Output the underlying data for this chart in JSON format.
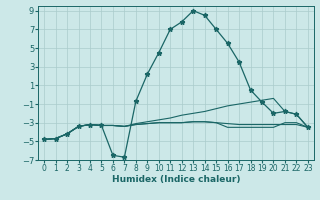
{
  "xlabel": "Humidex (Indice chaleur)",
  "bg_color": "#cce8e8",
  "grid_color": "#aacccc",
  "line_color": "#1a6666",
  "xlim": [
    -0.5,
    23.5
  ],
  "ylim": [
    -7,
    9.5
  ],
  "xticks": [
    0,
    1,
    2,
    3,
    4,
    5,
    6,
    7,
    8,
    9,
    10,
    11,
    12,
    13,
    14,
    15,
    16,
    17,
    18,
    19,
    20,
    21,
    22,
    23
  ],
  "yticks": [
    -7,
    -5,
    -3,
    -1,
    1,
    3,
    5,
    7,
    9
  ],
  "series1_x": [
    0,
    1,
    2,
    3,
    4,
    5,
    6,
    7,
    8,
    9,
    10,
    11,
    12,
    13,
    14,
    15,
    16,
    17,
    18,
    19,
    20,
    21,
    22,
    23
  ],
  "series1_y": [
    -4.8,
    -4.7,
    -4.2,
    -3.4,
    -3.2,
    -3.3,
    -6.5,
    -6.7,
    -0.7,
    2.2,
    4.5,
    7.0,
    7.8,
    9.0,
    8.5,
    7.0,
    5.5,
    3.5,
    0.5,
    -0.8,
    -2.0,
    -1.8,
    -2.1,
    -3.5
  ],
  "series2_x": [
    0,
    1,
    2,
    3,
    4,
    5,
    6,
    7,
    8,
    9,
    10,
    11,
    12,
    13,
    14,
    15,
    16,
    17,
    18,
    19,
    20,
    21,
    22,
    23
  ],
  "series2_y": [
    -4.8,
    -4.7,
    -4.2,
    -3.4,
    -3.2,
    -3.3,
    -3.3,
    -3.4,
    -3.1,
    -2.9,
    -2.7,
    -2.5,
    -2.2,
    -2.0,
    -1.8,
    -1.5,
    -1.2,
    -1.0,
    -0.8,
    -0.6,
    -0.4,
    -1.8,
    -2.1,
    -3.5
  ],
  "series3_x": [
    0,
    1,
    2,
    3,
    4,
    5,
    6,
    7,
    8,
    9,
    10,
    11,
    12,
    13,
    14,
    15,
    16,
    17,
    18,
    19,
    20,
    21,
    22,
    23
  ],
  "series3_y": [
    -4.8,
    -4.7,
    -4.2,
    -3.4,
    -3.2,
    -3.3,
    -3.3,
    -3.4,
    -3.2,
    -3.1,
    -3.0,
    -3.0,
    -3.0,
    -2.9,
    -2.9,
    -3.0,
    -3.1,
    -3.2,
    -3.2,
    -3.2,
    -3.2,
    -3.2,
    -3.2,
    -3.5
  ],
  "series4_x": [
    0,
    1,
    2,
    3,
    4,
    5,
    6,
    7,
    8,
    9,
    10,
    11,
    12,
    13,
    14,
    15,
    16,
    17,
    18,
    19,
    20,
    21,
    22,
    23
  ],
  "series4_y": [
    -4.8,
    -4.7,
    -4.2,
    -3.4,
    -3.2,
    -3.3,
    -3.3,
    -3.4,
    -3.2,
    -3.1,
    -3.0,
    -3.0,
    -3.0,
    -2.9,
    -2.9,
    -3.0,
    -3.5,
    -3.5,
    -3.5,
    -3.5,
    -3.5,
    -3.0,
    -3.0,
    -3.5
  ]
}
